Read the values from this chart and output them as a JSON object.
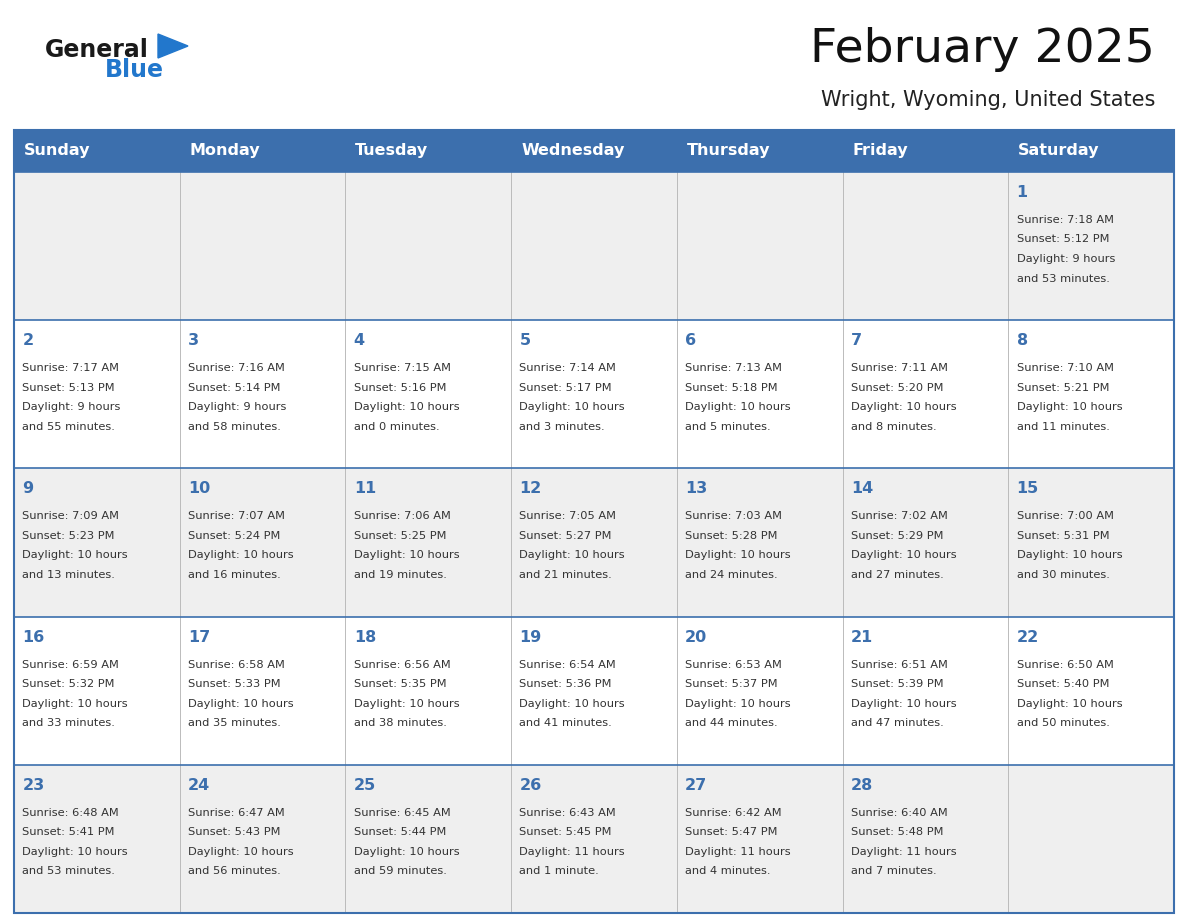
{
  "title": "February 2025",
  "subtitle": "Wright, Wyoming, United States",
  "header_color": "#3c6fad",
  "header_text_color": "#ffffff",
  "cell_bg_light": "#efefef",
  "cell_bg_white": "#ffffff",
  "day_number_color": "#3c6fad",
  "text_color": "#333333",
  "days_of_week": [
    "Sunday",
    "Monday",
    "Tuesday",
    "Wednesday",
    "Thursday",
    "Friday",
    "Saturday"
  ],
  "logo_general_color": "#1a1a1a",
  "logo_blue_color": "#2277cc",
  "border_color": "#3c6fad",
  "calendar_data": [
    {
      "day": 1,
      "col": 6,
      "row": 0,
      "sunrise": "7:18 AM",
      "sunset": "5:12 PM",
      "daylight_h": "9 hours",
      "daylight_m": "and 53 minutes."
    },
    {
      "day": 2,
      "col": 0,
      "row": 1,
      "sunrise": "7:17 AM",
      "sunset": "5:13 PM",
      "daylight_h": "9 hours",
      "daylight_m": "and 55 minutes."
    },
    {
      "day": 3,
      "col": 1,
      "row": 1,
      "sunrise": "7:16 AM",
      "sunset": "5:14 PM",
      "daylight_h": "9 hours",
      "daylight_m": "and 58 minutes."
    },
    {
      "day": 4,
      "col": 2,
      "row": 1,
      "sunrise": "7:15 AM",
      "sunset": "5:16 PM",
      "daylight_h": "10 hours",
      "daylight_m": "and 0 minutes."
    },
    {
      "day": 5,
      "col": 3,
      "row": 1,
      "sunrise": "7:14 AM",
      "sunset": "5:17 PM",
      "daylight_h": "10 hours",
      "daylight_m": "and 3 minutes."
    },
    {
      "day": 6,
      "col": 4,
      "row": 1,
      "sunrise": "7:13 AM",
      "sunset": "5:18 PM",
      "daylight_h": "10 hours",
      "daylight_m": "and 5 minutes."
    },
    {
      "day": 7,
      "col": 5,
      "row": 1,
      "sunrise": "7:11 AM",
      "sunset": "5:20 PM",
      "daylight_h": "10 hours",
      "daylight_m": "and 8 minutes."
    },
    {
      "day": 8,
      "col": 6,
      "row": 1,
      "sunrise": "7:10 AM",
      "sunset": "5:21 PM",
      "daylight_h": "10 hours",
      "daylight_m": "and 11 minutes."
    },
    {
      "day": 9,
      "col": 0,
      "row": 2,
      "sunrise": "7:09 AM",
      "sunset": "5:23 PM",
      "daylight_h": "10 hours",
      "daylight_m": "and 13 minutes."
    },
    {
      "day": 10,
      "col": 1,
      "row": 2,
      "sunrise": "7:07 AM",
      "sunset": "5:24 PM",
      "daylight_h": "10 hours",
      "daylight_m": "and 16 minutes."
    },
    {
      "day": 11,
      "col": 2,
      "row": 2,
      "sunrise": "7:06 AM",
      "sunset": "5:25 PM",
      "daylight_h": "10 hours",
      "daylight_m": "and 19 minutes."
    },
    {
      "day": 12,
      "col": 3,
      "row": 2,
      "sunrise": "7:05 AM",
      "sunset": "5:27 PM",
      "daylight_h": "10 hours",
      "daylight_m": "and 21 minutes."
    },
    {
      "day": 13,
      "col": 4,
      "row": 2,
      "sunrise": "7:03 AM",
      "sunset": "5:28 PM",
      "daylight_h": "10 hours",
      "daylight_m": "and 24 minutes."
    },
    {
      "day": 14,
      "col": 5,
      "row": 2,
      "sunrise": "7:02 AM",
      "sunset": "5:29 PM",
      "daylight_h": "10 hours",
      "daylight_m": "and 27 minutes."
    },
    {
      "day": 15,
      "col": 6,
      "row": 2,
      "sunrise": "7:00 AM",
      "sunset": "5:31 PM",
      "daylight_h": "10 hours",
      "daylight_m": "and 30 minutes."
    },
    {
      "day": 16,
      "col": 0,
      "row": 3,
      "sunrise": "6:59 AM",
      "sunset": "5:32 PM",
      "daylight_h": "10 hours",
      "daylight_m": "and 33 minutes."
    },
    {
      "day": 17,
      "col": 1,
      "row": 3,
      "sunrise": "6:58 AM",
      "sunset": "5:33 PM",
      "daylight_h": "10 hours",
      "daylight_m": "and 35 minutes."
    },
    {
      "day": 18,
      "col": 2,
      "row": 3,
      "sunrise": "6:56 AM",
      "sunset": "5:35 PM",
      "daylight_h": "10 hours",
      "daylight_m": "and 38 minutes."
    },
    {
      "day": 19,
      "col": 3,
      "row": 3,
      "sunrise": "6:54 AM",
      "sunset": "5:36 PM",
      "daylight_h": "10 hours",
      "daylight_m": "and 41 minutes."
    },
    {
      "day": 20,
      "col": 4,
      "row": 3,
      "sunrise": "6:53 AM",
      "sunset": "5:37 PM",
      "daylight_h": "10 hours",
      "daylight_m": "and 44 minutes."
    },
    {
      "day": 21,
      "col": 5,
      "row": 3,
      "sunrise": "6:51 AM",
      "sunset": "5:39 PM",
      "daylight_h": "10 hours",
      "daylight_m": "and 47 minutes."
    },
    {
      "day": 22,
      "col": 6,
      "row": 3,
      "sunrise": "6:50 AM",
      "sunset": "5:40 PM",
      "daylight_h": "10 hours",
      "daylight_m": "and 50 minutes."
    },
    {
      "day": 23,
      "col": 0,
      "row": 4,
      "sunrise": "6:48 AM",
      "sunset": "5:41 PM",
      "daylight_h": "10 hours",
      "daylight_m": "and 53 minutes."
    },
    {
      "day": 24,
      "col": 1,
      "row": 4,
      "sunrise": "6:47 AM",
      "sunset": "5:43 PM",
      "daylight_h": "10 hours",
      "daylight_m": "and 56 minutes."
    },
    {
      "day": 25,
      "col": 2,
      "row": 4,
      "sunrise": "6:45 AM",
      "sunset": "5:44 PM",
      "daylight_h": "10 hours",
      "daylight_m": "and 59 minutes."
    },
    {
      "day": 26,
      "col": 3,
      "row": 4,
      "sunrise": "6:43 AM",
      "sunset": "5:45 PM",
      "daylight_h": "11 hours",
      "daylight_m": "and 1 minute."
    },
    {
      "day": 27,
      "col": 4,
      "row": 4,
      "sunrise": "6:42 AM",
      "sunset": "5:47 PM",
      "daylight_h": "11 hours",
      "daylight_m": "and 4 minutes."
    },
    {
      "day": 28,
      "col": 5,
      "row": 4,
      "sunrise": "6:40 AM",
      "sunset": "5:48 PM",
      "daylight_h": "11 hours",
      "daylight_m": "and 7 minutes."
    }
  ]
}
